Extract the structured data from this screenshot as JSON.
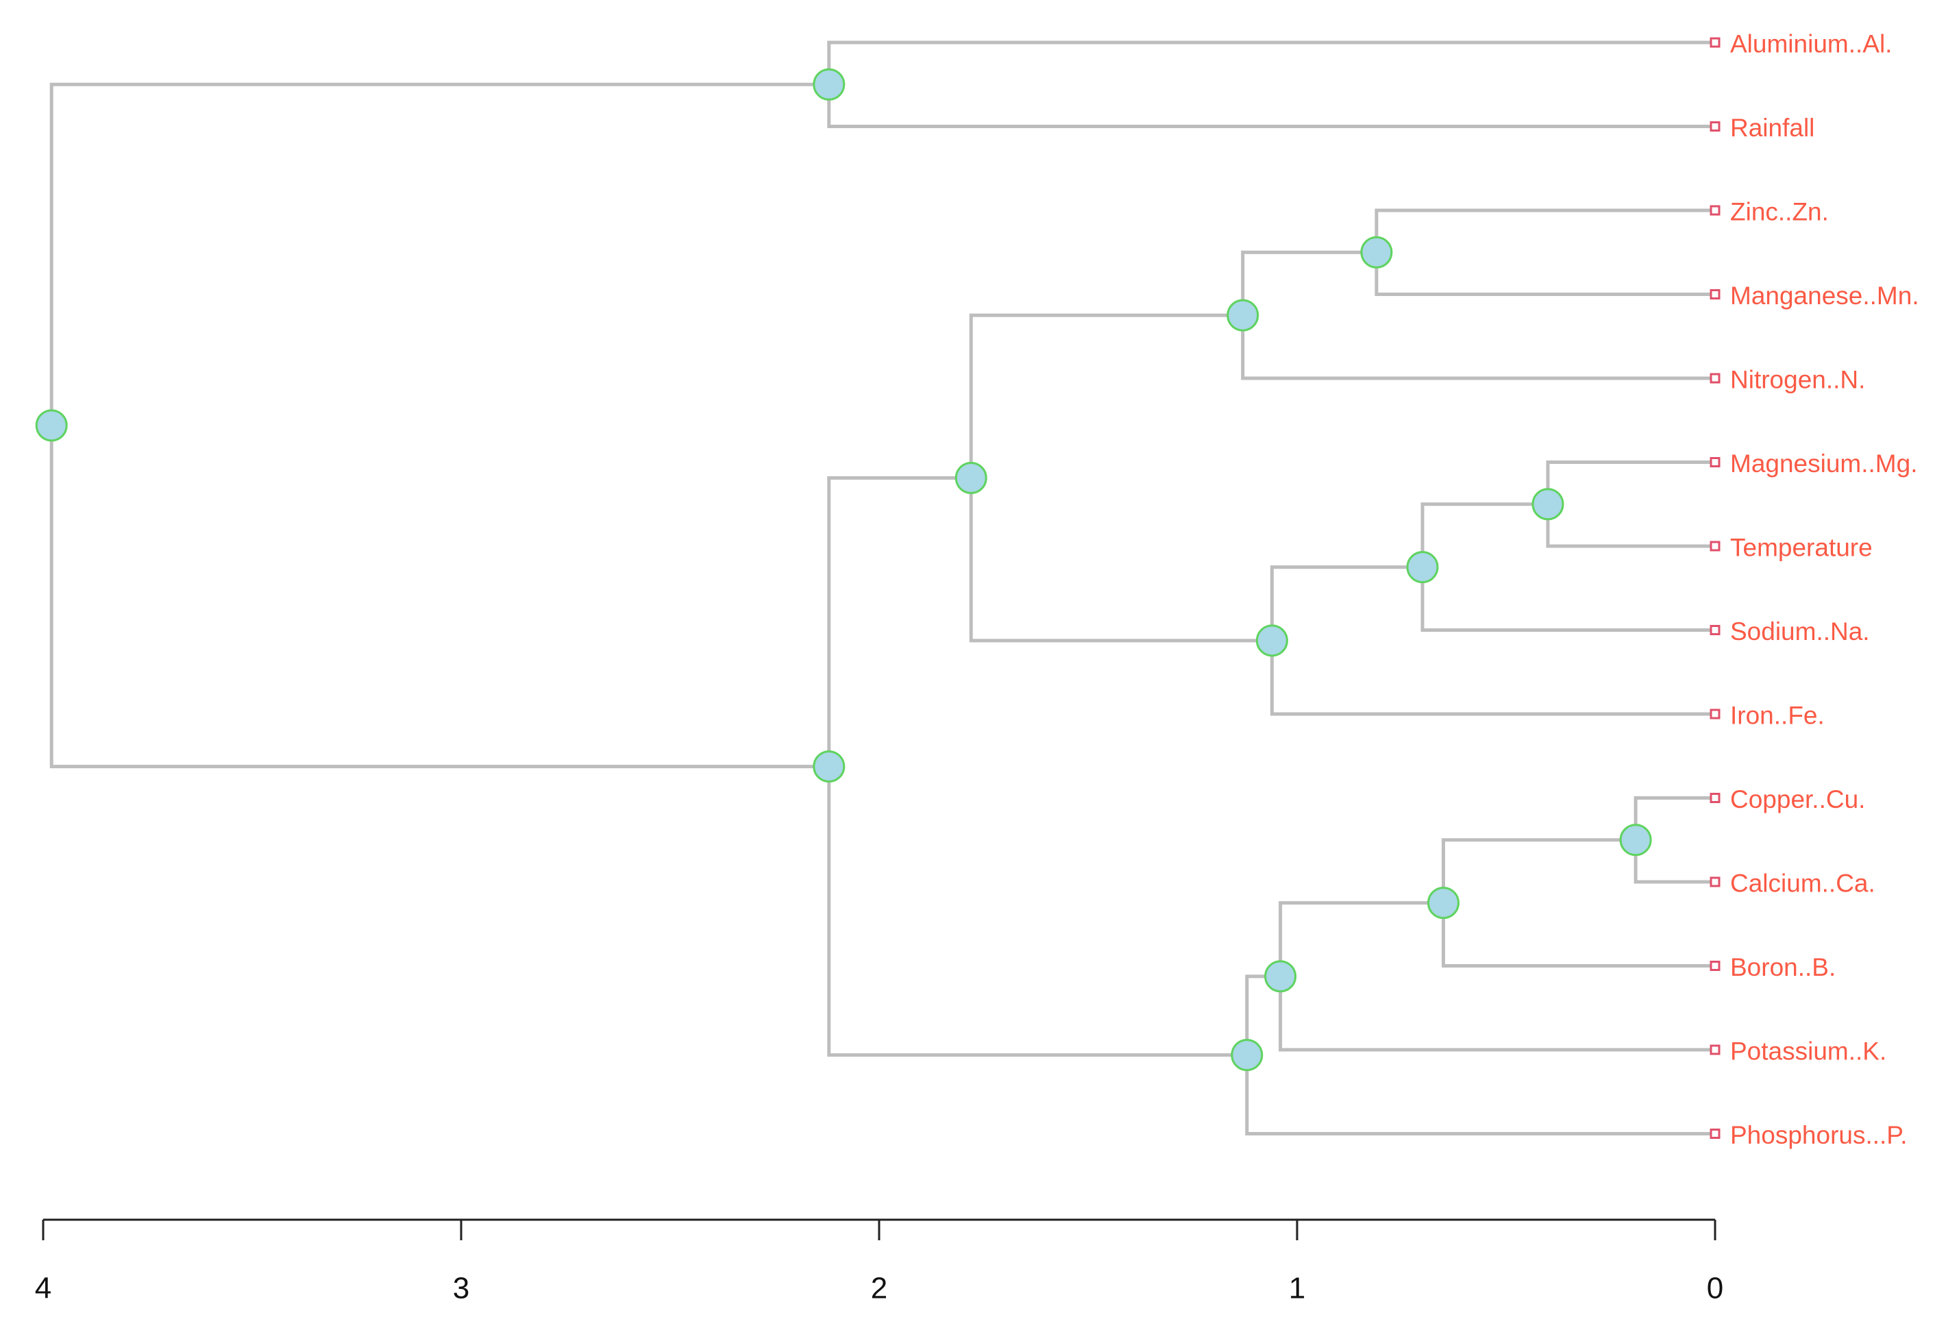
{
  "chart_data": {
    "type": "dendrogram",
    "orientation": "horizontal",
    "title": "",
    "xlabel": "",
    "ylabel": "",
    "xlim": [
      4,
      0
    ],
    "x_ticks": [
      4,
      3,
      2,
      1,
      0
    ],
    "x_tick_labels": [
      "4",
      "3",
      "2",
      "1",
      "0"
    ],
    "leaves": [
      "Aluminium..Al.",
      "Rainfall",
      "Zinc..Zn.",
      "Manganese..Mn.",
      "Nitrogen..N.",
      "Magnesium..Mg.",
      "Temperature",
      "Sodium..Na.",
      "Iron..Fe.",
      "Copper..Cu.",
      "Calcium..Ca.",
      "Boron..B.",
      "Potassium..K.",
      "Phosphorus...P."
    ],
    "merges": [
      {
        "id": "m1",
        "children": [
          "Copper..Cu.",
          "Calcium..Ca."
        ],
        "height": 0.19
      },
      {
        "id": "m2",
        "children": [
          "Magnesium..Mg.",
          "Temperature"
        ],
        "height": 0.4
      },
      {
        "id": "m3",
        "children": [
          "m1",
          "Boron..B."
        ],
        "height": 0.65
      },
      {
        "id": "m4",
        "children": [
          "m2",
          "Sodium..Na."
        ],
        "height": 0.7
      },
      {
        "id": "m5",
        "children": [
          "Zinc..Zn.",
          "Manganese..Mn."
        ],
        "height": 0.81
      },
      {
        "id": "m6",
        "children": [
          "m3",
          "Potassium..K."
        ],
        "height": 1.04
      },
      {
        "id": "m7",
        "children": [
          "m4",
          "Iron..Fe."
        ],
        "height": 1.06
      },
      {
        "id": "m8",
        "children": [
          "m6",
          "Phosphorus...P."
        ],
        "height": 1.12
      },
      {
        "id": "m9",
        "children": [
          "m5",
          "Nitrogen..N."
        ],
        "height": 1.13
      },
      {
        "id": "m10",
        "children": [
          "m9",
          "m7"
        ],
        "height": 1.78
      },
      {
        "id": "m11",
        "children": [
          "Aluminium..Al.",
          "Rainfall"
        ],
        "height": 2.12
      },
      {
        "id": "m12",
        "children": [
          "m10",
          "m8"
        ],
        "height": 2.12
      },
      {
        "id": "m13",
        "children": [
          "m11",
          "m12"
        ],
        "height": 3.98
      }
    ],
    "colors": {
      "branch": "#bdbdbd",
      "node_fill": "#a9d8e6",
      "node_stroke": "#5fd35f",
      "leaf_marker": "#e0506a",
      "leaf_label": "#fa5a45",
      "axis": "#222222"
    }
  }
}
